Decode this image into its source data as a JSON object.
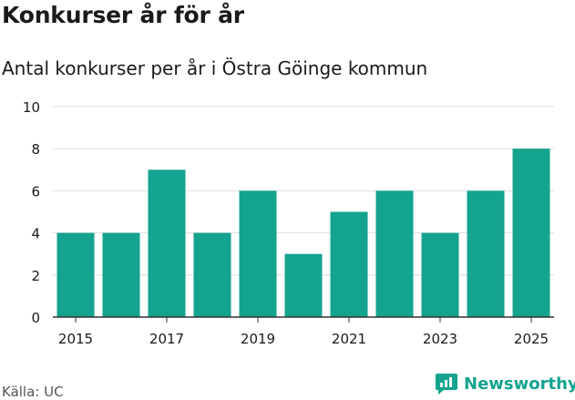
{
  "header": {
    "title": "Konkurser år för år",
    "subtitle": "Antal konkurser per år i Östra Göinge kommun"
  },
  "footer": {
    "source": "Källa: UC",
    "brand": "Newsworthy"
  },
  "colors": {
    "bar": "#13a38f",
    "brand": "#13a38f",
    "grid": "#dddddd",
    "axis": "#333333"
  },
  "chart_data": {
    "type": "bar",
    "title": "Konkurser år för år",
    "subtitle": "Antal konkurser per år i Östra Göinge kommun",
    "xlabel": "",
    "ylabel": "",
    "categories": [
      "2015",
      "2016",
      "2017",
      "2018",
      "2019",
      "2020",
      "2021",
      "2022",
      "2023",
      "2024",
      "2025"
    ],
    "values": [
      4,
      4,
      7,
      4,
      6,
      3,
      5,
      6,
      4,
      6,
      8
    ],
    "x_tick_labels": [
      "2015",
      "2017",
      "2019",
      "2021",
      "2023",
      "2025"
    ],
    "y_ticks": [
      0,
      2,
      4,
      6,
      8,
      10
    ],
    "ylim": [
      0,
      10
    ],
    "grid": true
  }
}
